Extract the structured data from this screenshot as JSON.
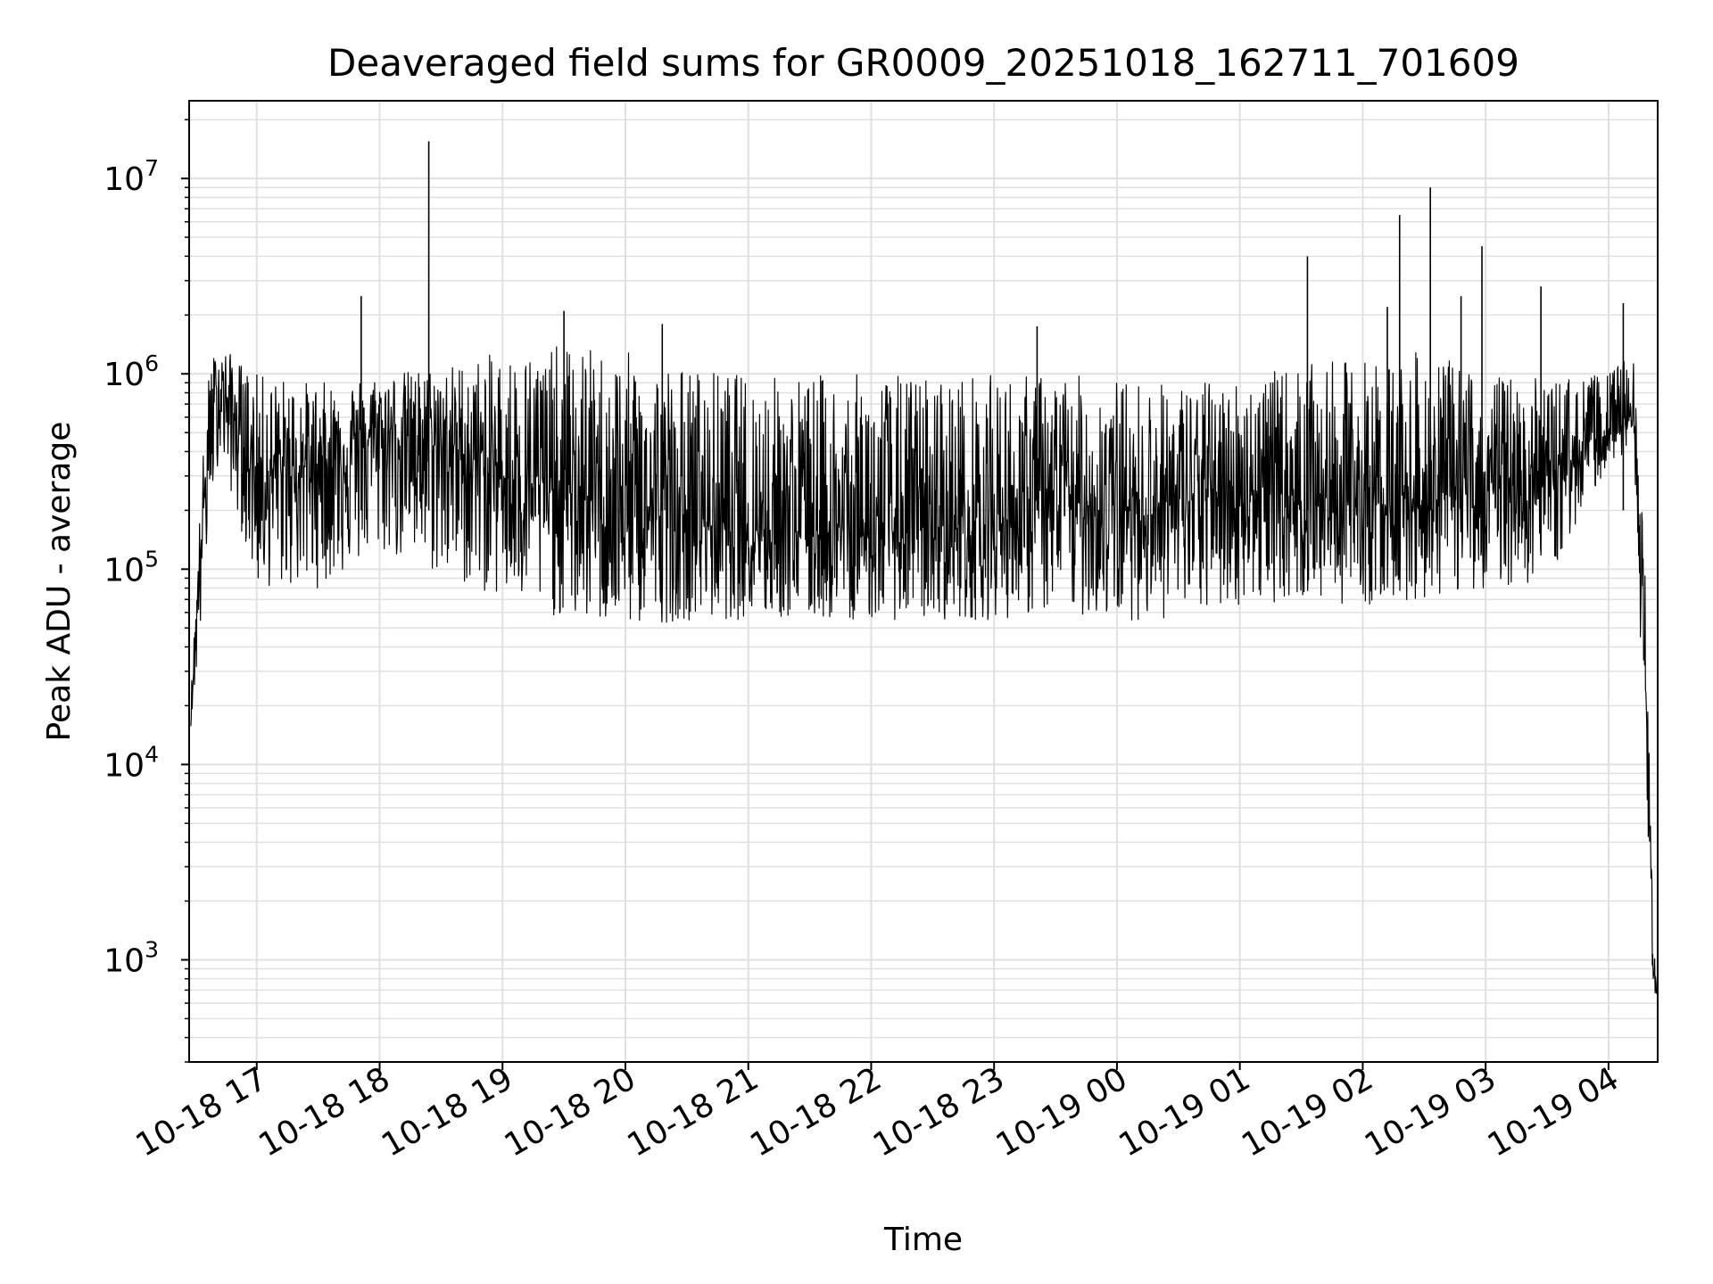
{
  "chart_data": {
    "type": "line",
    "title": "Deaveraged field sums for GR0009_20251018_162711_701609",
    "xlabel": "Time",
    "ylabel": "Peak ADU - average",
    "yscale": "log",
    "ylim": [
      300,
      25000000
    ],
    "xlim_hours": [
      16.45,
      28.4
    ],
    "grid": true,
    "line_color": "#000000",
    "grid_color": "#e0e0e0",
    "x_ticks": [
      {
        "hour": 17,
        "label": "10-18 17"
      },
      {
        "hour": 18,
        "label": "10-18 18"
      },
      {
        "hour": 19,
        "label": "10-18 19"
      },
      {
        "hour": 20,
        "label": "10-18 20"
      },
      {
        "hour": 21,
        "label": "10-18 21"
      },
      {
        "hour": 22,
        "label": "10-18 22"
      },
      {
        "hour": 23,
        "label": "10-18 23"
      },
      {
        "hour": 24,
        "label": "10-19 00"
      },
      {
        "hour": 25,
        "label": "10-19 01"
      },
      {
        "hour": 26,
        "label": "10-19 02"
      },
      {
        "hour": 27,
        "label": "10-19 03"
      },
      {
        "hour": 28,
        "label": "10-19 04"
      }
    ],
    "y_ticks": [
      {
        "value": 1000,
        "base": "10",
        "exp": "3"
      },
      {
        "value": 10000,
        "base": "10",
        "exp": "4"
      },
      {
        "value": 100000,
        "base": "10",
        "exp": "5"
      },
      {
        "value": 1000000,
        "base": "10",
        "exp": "6"
      },
      {
        "value": 10000000,
        "base": "10",
        "exp": "7"
      }
    ],
    "series": [
      {
        "name": "Peak ADU - average",
        "envelope_note": "dense noisy series; envelope (upper/lower bounds) estimated from gridlines",
        "hours": [
          16.46,
          16.55,
          16.62,
          16.7,
          17.0,
          17.5,
          18.0,
          18.5,
          19.0,
          19.5,
          20.0,
          20.5,
          21.0,
          21.5,
          22.0,
          22.5,
          23.0,
          23.5,
          24.0,
          24.5,
          25.0,
          25.5,
          26.0,
          26.5,
          27.0,
          27.5,
          28.0,
          28.2,
          28.3,
          28.35,
          28.39
        ],
        "median": [
          16000,
          150000,
          500000,
          900000,
          300000,
          350000,
          500000,
          450000,
          300000,
          250000,
          200000,
          180000,
          170000,
          160000,
          150000,
          160000,
          170000,
          230000,
          200000,
          220000,
          260000,
          230000,
          220000,
          230000,
          260000,
          300000,
          500000,
          600000,
          30000,
          2000,
          600
        ],
        "upper": [
          20000,
          300000,
          1200000,
          1400000,
          1000000,
          900000,
          1000000,
          1100000,
          1300000,
          1400000,
          1300000,
          1100000,
          1000000,
          1000000,
          1000000,
          1000000,
          1000000,
          1000000,
          950000,
          900000,
          950000,
          1100000,
          1200000,
          1300000,
          1000000,
          950000,
          1000000,
          1300000,
          100000,
          3000,
          800
        ],
        "lower": [
          15000,
          50000,
          200000,
          400000,
          80000,
          80000,
          120000,
          90000,
          70000,
          55000,
          50000,
          55000,
          55000,
          55000,
          55000,
          55000,
          55000,
          60000,
          55000,
          55000,
          65000,
          70000,
          65000,
          70000,
          80000,
          85000,
          350000,
          400000,
          10000,
          1000,
          500
        ]
      }
    ],
    "spikes": [
      {
        "hour": 17.85,
        "value": 2500000
      },
      {
        "hour": 18.4,
        "value": 15500000
      },
      {
        "hour": 19.5,
        "value": 2100000
      },
      {
        "hour": 20.3,
        "value": 1800000
      },
      {
        "hour": 23.35,
        "value": 1750000
      },
      {
        "hour": 25.55,
        "value": 4000000
      },
      {
        "hour": 26.2,
        "value": 2200000
      },
      {
        "hour": 26.3,
        "value": 6500000
      },
      {
        "hour": 26.55,
        "value": 9000000
      },
      {
        "hour": 26.8,
        "value": 2500000
      },
      {
        "hour": 26.97,
        "value": 4500000
      },
      {
        "hour": 27.45,
        "value": 2800000
      },
      {
        "hour": 28.12,
        "value": 2300000
      }
    ]
  }
}
